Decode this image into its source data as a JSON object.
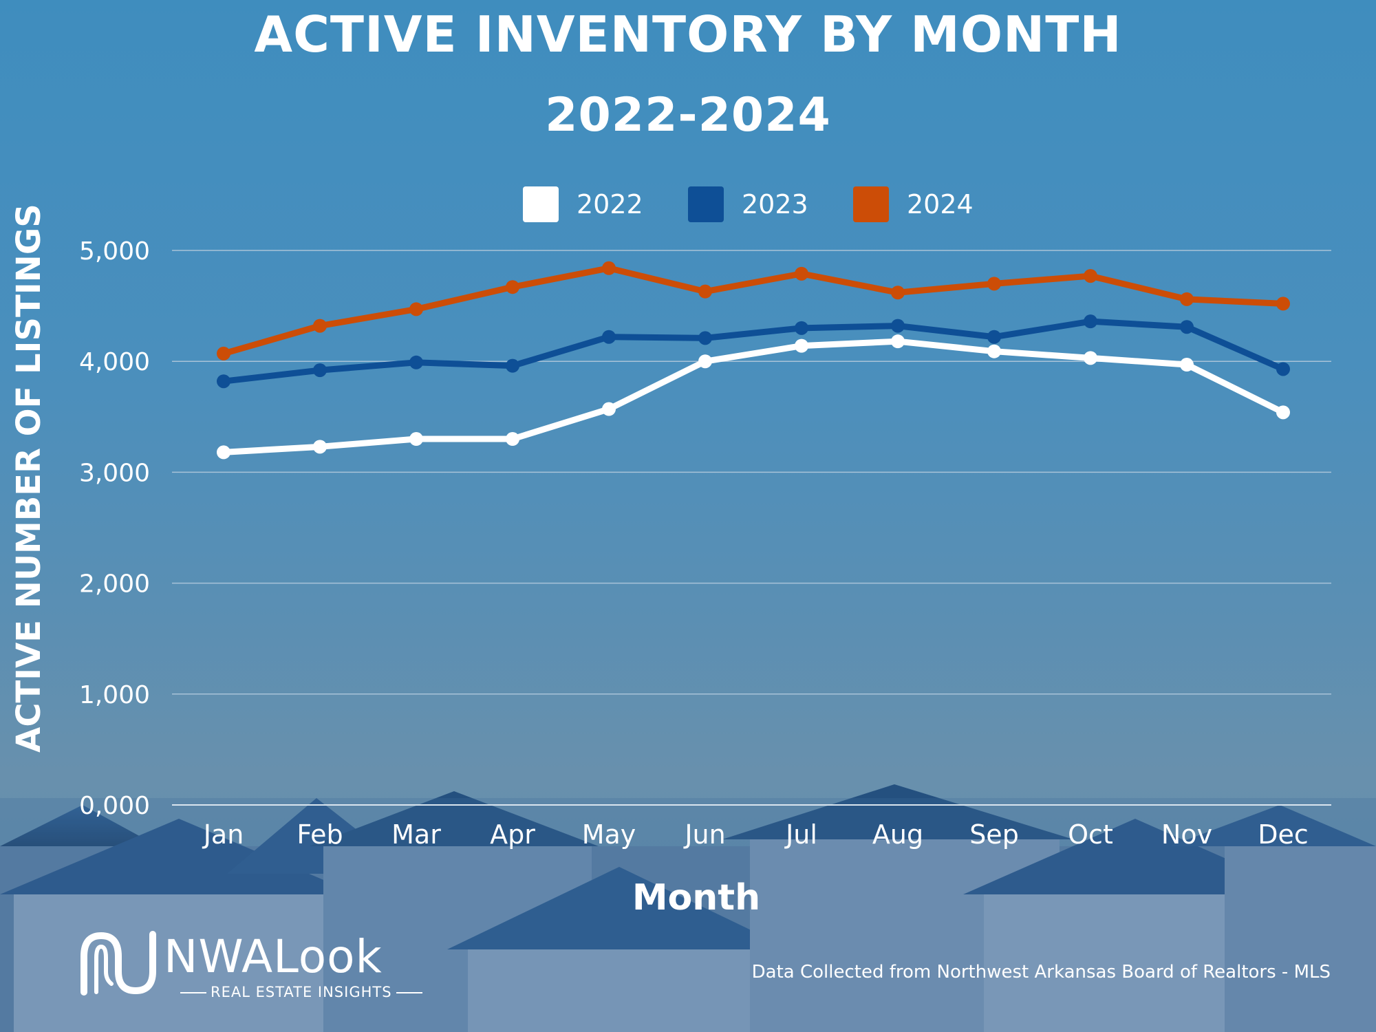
{
  "title_line1": "ACTIVE INVENTORY BY MONTH",
  "title_line2": "2022-2024",
  "source_note": "Data Collected from Northwest Arkansas Board of Realtors - MLS",
  "logo": {
    "name": "NWALook",
    "tagline": "REAL ESTATE INSIGHTS"
  },
  "chart_data": {
    "type": "line",
    "ylabel": "ACTIVE NUMBER OF LISTINGS",
    "xlabel": "Month",
    "categories": [
      "Jan",
      "Feb",
      "Mar",
      "Apr",
      "May",
      "Jun",
      "Jul",
      "Aug",
      "Sep",
      "Oct",
      "Nov",
      "Dec"
    ],
    "ylim": [
      0,
      5000
    ],
    "yticks": [
      0,
      1000,
      2000,
      3000,
      4000,
      5000
    ],
    "ytick_labels": [
      "0,000",
      "1,000",
      "2,000",
      "3,000",
      "4,000",
      "5,000"
    ],
    "grid": true,
    "legend": "top-center",
    "series": [
      {
        "name": "2022",
        "color": "#ffffff",
        "values": [
          3180,
          3230,
          3300,
          3300,
          3570,
          4000,
          4140,
          4180,
          4090,
          4030,
          3970,
          3540
        ]
      },
      {
        "name": "2023",
        "color": "#0e4f96",
        "values": [
          3820,
          3920,
          3990,
          3960,
          4220,
          4210,
          4300,
          4320,
          4220,
          4360,
          4310,
          3930
        ]
      },
      {
        "name": "2024",
        "color": "#cc4d07",
        "values": [
          4070,
          4320,
          4470,
          4670,
          4840,
          4630,
          4790,
          4620,
          4700,
          4770,
          4560,
          4520
        ]
      }
    ]
  }
}
